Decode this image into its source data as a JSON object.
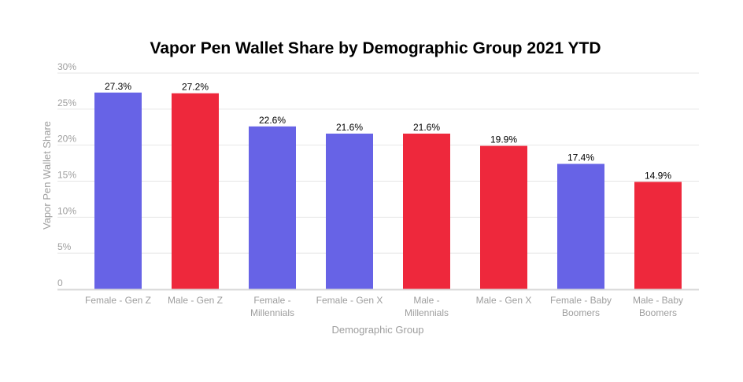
{
  "chart_data": {
    "type": "bar",
    "title": "Vapor Pen Wallet Share by Demographic Group 2021 YTD",
    "xlabel": "Demographic Group",
    "ylabel": "Vapor Pen Wallet Share",
    "ylim": [
      0,
      30
    ],
    "yticks": [
      {
        "value": 0,
        "label": "0"
      },
      {
        "value": 5,
        "label": "5%"
      },
      {
        "value": 10,
        "label": "10%"
      },
      {
        "value": 15,
        "label": "15%"
      },
      {
        "value": 20,
        "label": "20%"
      },
      {
        "value": 25,
        "label": "25%"
      },
      {
        "value": 30,
        "label": "30%"
      }
    ],
    "grid": true,
    "categories": [
      [
        "Female - Gen Z"
      ],
      [
        "Male - Gen Z"
      ],
      [
        "Female -",
        "Millennials"
      ],
      [
        "Female - Gen X"
      ],
      [
        "Male -",
        "Millennials"
      ],
      [
        "Male - Gen X"
      ],
      [
        "Female - Baby",
        "Boomers"
      ],
      [
        "Male - Baby",
        "Boomers"
      ]
    ],
    "values": [
      27.3,
      27.2,
      22.6,
      21.6,
      21.6,
      19.9,
      17.4,
      14.9
    ],
    "data_labels": [
      "27.3%",
      "27.2%",
      "22.6%",
      "21.6%",
      "21.6%",
      "19.9%",
      "17.4%",
      "14.9%"
    ],
    "bar_colors": [
      "#6763e6",
      "#ee283c",
      "#6763e6",
      "#6763e6",
      "#ee283c",
      "#ee283c",
      "#6763e6",
      "#ee283c"
    ]
  },
  "colors": {
    "grid": "#e6e6e6",
    "baseline": "#d9d9d9"
  }
}
